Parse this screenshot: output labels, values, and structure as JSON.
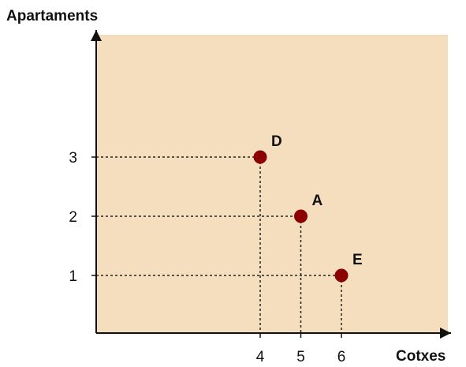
{
  "chart_data": {
    "type": "scatter",
    "title": "",
    "xlabel": "Cotxes",
    "ylabel": "Apartaments",
    "xticks": [
      4,
      5,
      6
    ],
    "yticks": [
      1,
      2,
      3
    ],
    "points": [
      {
        "label": "D",
        "x": 4,
        "y": 3
      },
      {
        "label": "A",
        "x": 5,
        "y": 2
      },
      {
        "label": "E",
        "x": 6,
        "y": 1
      }
    ],
    "grid": false,
    "dropline_style": "dotted",
    "colors": {
      "plot_background": "#F5DEBE",
      "marker": "#8B0000",
      "axis": "#111111",
      "dropline": "#222222"
    }
  }
}
